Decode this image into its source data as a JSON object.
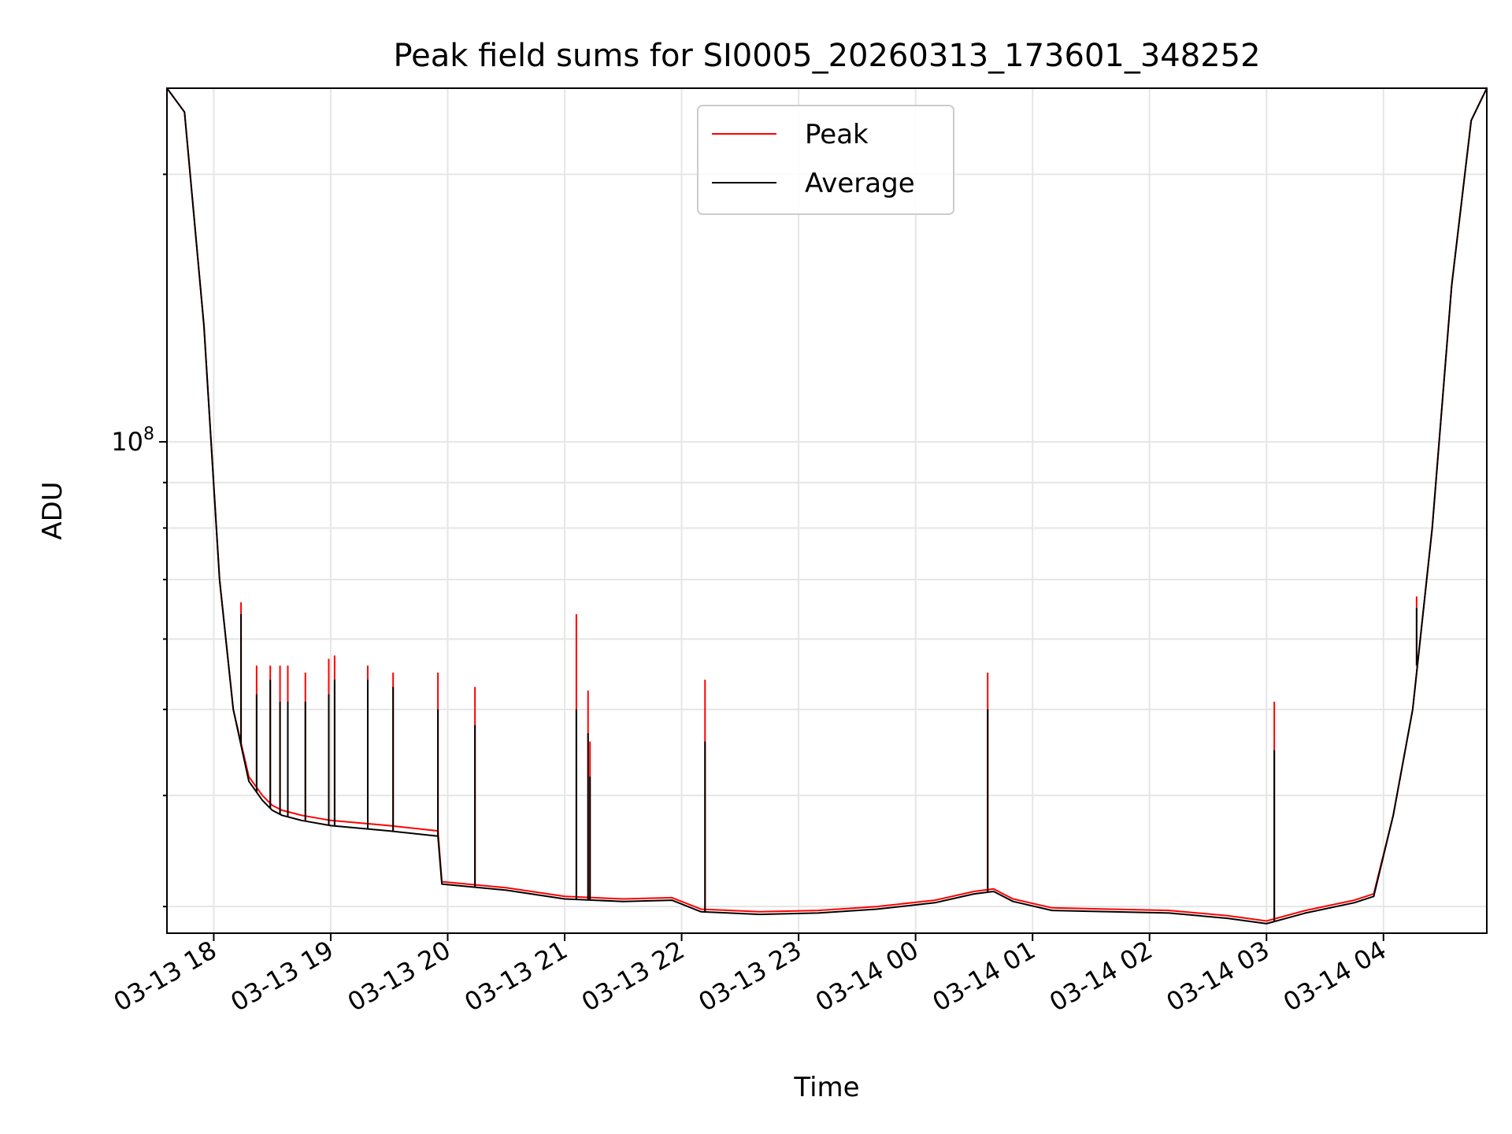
{
  "chart_data": {
    "type": "line",
    "title": "Peak field sums for SI0005_20260313_173601_348252",
    "xlabel": "Time",
    "ylabel": "ADU",
    "y_scale": "log",
    "ylim": [
      28000000,
      250000000
    ],
    "xlim": [
      "2026-03-13 17:36",
      "2026-03-14 04:53"
    ],
    "x_tick_labels": [
      "03-13 18",
      "03-13 19",
      "03-13 20",
      "03-13 21",
      "03-13 22",
      "03-13 23",
      "03-14 00",
      "03-14 01",
      "03-14 02",
      "03-14 03",
      "03-14 04"
    ],
    "y_tick_labels": [
      {
        "base": "10",
        "exponent": "8"
      }
    ],
    "grid": true,
    "legend_position": "top-center",
    "x_dates": [
      "2026-03-13 17:36",
      "2026-03-13 17:45",
      "2026-03-13 17:55",
      "2026-03-13 18:03",
      "2026-03-13 18:10",
      "2026-03-13 18:18",
      "2026-03-13 18:25",
      "2026-03-13 18:30",
      "2026-03-13 18:35",
      "2026-03-13 18:45",
      "2026-03-13 19:00",
      "2026-03-13 19:30",
      "2026-03-13 19:55",
      "2026-03-13 19:57",
      "2026-03-13 20:30",
      "2026-03-13 21:00",
      "2026-03-13 21:30",
      "2026-03-13 21:55",
      "2026-03-13 22:10",
      "2026-03-13 22:40",
      "2026-03-13 23:10",
      "2026-03-13 23:40",
      "2026-03-14 00:10",
      "2026-03-14 00:30",
      "2026-03-14 00:40",
      "2026-03-14 00:50",
      "2026-03-14 01:10",
      "2026-03-14 01:40",
      "2026-03-14 02:10",
      "2026-03-14 02:40",
      "2026-03-14 03:00",
      "2026-03-14 03:20",
      "2026-03-14 03:45",
      "2026-03-14 03:55",
      "2026-03-14 04:05",
      "2026-03-14 04:15",
      "2026-03-14 04:25",
      "2026-03-14 04:35",
      "2026-03-14 04:45",
      "2026-03-14 04:53"
    ],
    "series": [
      {
        "name": "Peak",
        "color": "#ff0000",
        "values": [
          250000000,
          235000000,
          135000000,
          70000000,
          50000000,
          42000000,
          40000000,
          39000000,
          38500000,
          38000000,
          37500000,
          37000000,
          36500000,
          32000000,
          31500000,
          30800000,
          30600000,
          30700000,
          29800000,
          29600000,
          29700000,
          30000000,
          30500000,
          31200000,
          31400000,
          30600000,
          29900000,
          29800000,
          29700000,
          29300000,
          28900000,
          29700000,
          30500000,
          31000000,
          38000000,
          50000000,
          80000000,
          150000000,
          230000000,
          250000000
        ]
      },
      {
        "name": "Average",
        "color": "#000000",
        "values": [
          250000000,
          235000000,
          135000000,
          70000000,
          50000000,
          41500000,
          39500000,
          38500000,
          38000000,
          37500000,
          37000000,
          36500000,
          36000000,
          31800000,
          31300000,
          30600000,
          30400000,
          30500000,
          29600000,
          29400000,
          29500000,
          29800000,
          30300000,
          31000000,
          31200000,
          30400000,
          29700000,
          29600000,
          29500000,
          29100000,
          28700000,
          29500000,
          30300000,
          30800000,
          38000000,
          50000000,
          80000000,
          150000000,
          230000000,
          250000000
        ]
      }
    ],
    "spikes": [
      {
        "x": "2026-03-13 18:14",
        "peak": 66000000,
        "avg": 64000000
      },
      {
        "x": "2026-03-13 18:22",
        "peak": 56000000,
        "avg": 52000000
      },
      {
        "x": "2026-03-13 18:29",
        "peak": 56000000,
        "avg": 54000000
      },
      {
        "x": "2026-03-13 18:34",
        "peak": 56000000,
        "avg": 51000000
      },
      {
        "x": "2026-03-13 18:38",
        "peak": 56000000,
        "avg": 51000000
      },
      {
        "x": "2026-03-13 18:47",
        "peak": 55000000,
        "avg": 51000000
      },
      {
        "x": "2026-03-13 18:59",
        "peak": 57000000,
        "avg": 52000000
      },
      {
        "x": "2026-03-13 19:02",
        "peak": 57500000,
        "avg": 54000000
      },
      {
        "x": "2026-03-13 19:19",
        "peak": 56000000,
        "avg": 54000000
      },
      {
        "x": "2026-03-13 19:32",
        "peak": 55000000,
        "avg": 53000000
      },
      {
        "x": "2026-03-13 19:55",
        "peak": 55000000,
        "avg": 50000000
      },
      {
        "x": "2026-03-13 20:14",
        "peak": 53000000,
        "avg": 48000000
      },
      {
        "x": "2026-03-13 21:06",
        "peak": 64000000,
        "avg": 50000000
      },
      {
        "x": "2026-03-13 21:12",
        "peak": 52500000,
        "avg": 47000000
      },
      {
        "x": "2026-03-13 21:13",
        "peak": 46000000,
        "avg": 42000000
      },
      {
        "x": "2026-03-13 22:12",
        "peak": 54000000,
        "avg": 46000000
      },
      {
        "x": "2026-03-14 00:37",
        "peak": 55000000,
        "avg": 50000000
      },
      {
        "x": "2026-03-14 03:04",
        "peak": 51000000,
        "avg": 45000000
      },
      {
        "x": "2026-03-14 04:17",
        "peak": 67000000,
        "avg": 65000000
      }
    ]
  },
  "legend": {
    "items": [
      {
        "label": "Peak",
        "color": "#ff0000"
      },
      {
        "label": "Average",
        "color": "#000000"
      }
    ]
  }
}
